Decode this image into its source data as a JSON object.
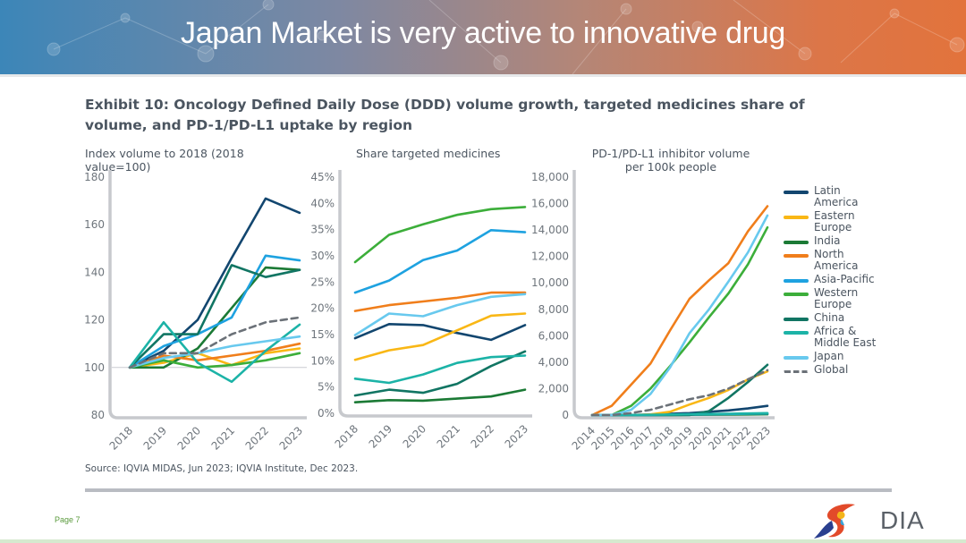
{
  "slide": {
    "title": "Japan Market is very active to innovative drug",
    "exhibit_title": "Exhibit 10: Oncology Defined Daily Dose (DDD) volume growth, targeted medicines share of volume, and PD-1/PD-L1 uptake by region",
    "source": "Source: IQVIA MIDAS, Jun 2023; IQVIA Institute, Dec 2023.",
    "page_label": "Page 7",
    "logo_text": "DIA"
  },
  "legend": [
    {
      "name": "Latin America",
      "color": "#12466f",
      "dashed": false
    },
    {
      "name": "Eastern Europe",
      "color": "#f9b715",
      "dashed": false
    },
    {
      "name": "India",
      "color": "#1b7a35",
      "dashed": false
    },
    {
      "name": "North America",
      "color": "#f07e1b",
      "dashed": false
    },
    {
      "name": "Asia-Pacific",
      "color": "#1ea2e0",
      "dashed": false
    },
    {
      "name": "Western Europe",
      "color": "#3cae3a",
      "dashed": false
    },
    {
      "name": "China",
      "color": "#117563",
      "dashed": false
    },
    {
      "name": "Africa & Middle East",
      "color": "#1cb3a7",
      "dashed": false
    },
    {
      "name": "Japan",
      "color": "#68c9ee",
      "dashed": false
    },
    {
      "name": "Global",
      "color": "#6b7178",
      "dashed": true
    }
  ],
  "legend_labels": [
    [
      "Latin",
      "America"
    ],
    [
      "Eastern",
      "Europe"
    ],
    [
      "India"
    ],
    [
      "North",
      "America"
    ],
    [
      "Asia-Pacific"
    ],
    [
      "Western",
      "Europe"
    ],
    [
      "China"
    ],
    [
      "Africa &",
      "Middle East"
    ],
    [
      "Japan"
    ],
    [
      "Global"
    ]
  ],
  "chart_data": [
    {
      "type": "line",
      "title": "Index volume to 2018 (2018 value=100)",
      "xlabel": "",
      "ylabel": "",
      "x": [
        "2018",
        "2019",
        "2020",
        "2021",
        "2022",
        "2023"
      ],
      "ylim": [
        80,
        180
      ],
      "yticks": [
        80,
        100,
        120,
        140,
        160,
        180
      ],
      "ytick_labels": [
        "80",
        "100",
        "120",
        "140",
        "160",
        "180"
      ],
      "reference_line": 100,
      "grid": false,
      "series": [
        {
          "name": "Latin America",
          "values": [
            100,
            107,
            120,
            146,
            171,
            165
          ]
        },
        {
          "name": "Eastern Europe",
          "values": [
            100,
            102,
            106,
            101,
            106,
            108
          ]
        },
        {
          "name": "India",
          "values": [
            100,
            100,
            108,
            125,
            142,
            141
          ]
        },
        {
          "name": "North America",
          "values": [
            100,
            105,
            103,
            105,
            107,
            110
          ]
        },
        {
          "name": "Asia-Pacific",
          "values": [
            100,
            109,
            114,
            121,
            147,
            145
          ]
        },
        {
          "name": "Western Europe",
          "values": [
            100,
            103,
            100,
            101,
            103,
            106
          ]
        },
        {
          "name": "China",
          "values": [
            100,
            114,
            114,
            143,
            138,
            141
          ]
        },
        {
          "name": "Africa & Middle East",
          "values": [
            100,
            119,
            102,
            94,
            107,
            118
          ]
        },
        {
          "name": "Japan",
          "values": [
            100,
            104,
            106,
            109,
            111,
            113
          ]
        },
        {
          "name": "Global",
          "values": [
            100,
            106,
            106,
            114,
            119,
            121
          ]
        }
      ]
    },
    {
      "type": "line",
      "title": "Share targeted medicines",
      "xlabel": "",
      "ylabel": "",
      "x": [
        "2018",
        "2019",
        "2020",
        "2021",
        "2022",
        "2023"
      ],
      "ylim": [
        0,
        45
      ],
      "yticks": [
        0,
        5,
        10,
        15,
        20,
        25,
        30,
        35,
        40,
        45
      ],
      "ytick_labels": [
        "0%",
        "5%",
        "10%",
        "15%",
        "20%",
        "25%",
        "30%",
        "35%",
        "40%",
        "45%"
      ],
      "grid": false,
      "series": [
        {
          "name": "Latin America",
          "values": [
            14.3,
            17.0,
            16.8,
            15.3,
            14.0,
            16.8
          ]
        },
        {
          "name": "Eastern Europe",
          "values": [
            10.2,
            12.0,
            13.0,
            15.8,
            18.6,
            19.0
          ]
        },
        {
          "name": "India",
          "values": [
            2.1,
            2.5,
            2.4,
            2.8,
            3.2,
            4.5
          ]
        },
        {
          "name": "North America",
          "values": [
            19.5,
            20.6,
            21.3,
            22.0,
            23.0,
            23.0
          ]
        },
        {
          "name": "Asia-Pacific",
          "values": [
            23.0,
            25.3,
            29.2,
            31.0,
            34.9,
            34.5
          ]
        },
        {
          "name": "Western Europe",
          "values": [
            28.8,
            34.0,
            36.0,
            37.8,
            38.9,
            39.3
          ]
        },
        {
          "name": "China",
          "values": [
            3.4,
            4.5,
            3.9,
            5.6,
            9.0,
            11.8
          ]
        },
        {
          "name": "Africa & Middle East",
          "values": [
            6.6,
            5.8,
            7.4,
            9.6,
            10.7,
            11.0
          ]
        },
        {
          "name": "Japan",
          "values": [
            14.9,
            19.0,
            18.5,
            20.6,
            22.2,
            22.7
          ]
        }
      ]
    },
    {
      "type": "line",
      "title": "PD-1/PD-L1 inhibitor volume per 100k people",
      "title_lines": [
        "PD-1/PD-L1 inhibitor volume",
        "per 100k people"
      ],
      "xlabel": "",
      "ylabel": "",
      "x": [
        "2014",
        "2015",
        "2016",
        "2017",
        "2018",
        "2019",
        "2020",
        "2021",
        "2022",
        "2023"
      ],
      "ylim": [
        0,
        18000
      ],
      "yticks": [
        0,
        2000,
        4000,
        6000,
        8000,
        10000,
        12000,
        14000,
        16000,
        18000
      ],
      "ytick_labels": [
        "0",
        "2,000",
        "4,000",
        "6,000",
        "8,000",
        "10,000",
        "12,000",
        "14,000",
        "16,000",
        "18,000"
      ],
      "grid": false,
      "series": [
        {
          "name": "Latin America",
          "values": [
            0,
            0,
            0,
            50,
            100,
            150,
            250,
            350,
            500,
            700
          ]
        },
        {
          "name": "Eastern Europe",
          "values": [
            0,
            0,
            0,
            50,
            250,
            800,
            1300,
            1900,
            2700,
            3300
          ]
        },
        {
          "name": "India",
          "values": [
            0,
            0,
            0,
            0,
            10,
            20,
            30,
            40,
            50,
            60
          ]
        },
        {
          "name": "North America",
          "values": [
            0,
            700,
            2300,
            3900,
            6400,
            8800,
            10200,
            11500,
            13900,
            15800
          ]
        },
        {
          "name": "Asia-Pacific",
          "values": [
            0,
            0,
            0,
            0,
            20,
            40,
            60,
            80,
            100,
            120
          ]
        },
        {
          "name": "Western Europe",
          "values": [
            0,
            0,
            700,
            2000,
            3700,
            5500,
            7400,
            9200,
            11400,
            14200
          ]
        },
        {
          "name": "China",
          "values": [
            0,
            0,
            0,
            0,
            0,
            0,
            300,
            1300,
            2500,
            3800
          ]
        },
        {
          "name": "Africa & Middle East",
          "values": [
            0,
            0,
            0,
            20,
            40,
            60,
            80,
            100,
            120,
            150
          ]
        },
        {
          "name": "Japan",
          "values": [
            0,
            0,
            400,
            1600,
            3600,
            6200,
            8000,
            10100,
            12300,
            15100
          ]
        },
        {
          "name": "Global",
          "values": [
            0,
            0,
            150,
            400,
            800,
            1200,
            1500,
            2000,
            2700,
            3400
          ]
        }
      ],
      "legend_position": "right"
    }
  ]
}
